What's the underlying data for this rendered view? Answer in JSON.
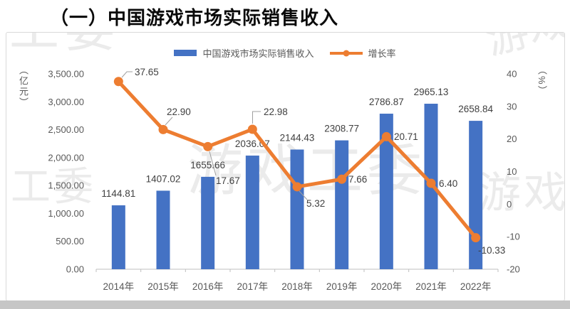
{
  "page": {
    "title": "（一）中国游戏市场实际销售收入"
  },
  "watermarks": [
    "工委",
    "游戏",
    "游戏工委",
    "工委",
    "游戏"
  ],
  "chart_data": {
    "type": "combo",
    "title": "（一）中国游戏市场实际销售收入",
    "categories": [
      "2014年",
      "2015年",
      "2016年",
      "2017年",
      "2018年",
      "2019年",
      "2020年",
      "2021年",
      "2022年"
    ],
    "series": [
      {
        "name": "中国游戏市场实际销售收入",
        "type": "bar",
        "axis": "left",
        "color": "#4472C4",
        "values": [
          1144.81,
          1407.02,
          1655.66,
          2036.07,
          2144.43,
          2308.77,
          2786.87,
          2965.13,
          2658.84
        ],
        "labels": [
          "1144.81",
          "1407.02",
          "1655.66",
          "2036.07",
          "2144.43",
          "2308.77",
          "2786.87",
          "2965.13",
          "2658.84"
        ]
      },
      {
        "name": "增长率",
        "type": "line",
        "axis": "right",
        "color": "#ED7D31",
        "values": [
          37.65,
          22.9,
          17.67,
          22.98,
          5.32,
          7.66,
          20.71,
          6.4,
          -10.33
        ],
        "labels": [
          "37.65",
          "22.90",
          "17.67",
          "22.98",
          "5.32",
          "7.66",
          "20.71",
          "6.40",
          "-10.33"
        ]
      }
    ],
    "left_axis": {
      "title": "（亿元）",
      "min": 0,
      "max": 3500,
      "step": 500,
      "ticks": [
        "3,500.00",
        "3,000.00",
        "2,500.00",
        "2,000.00",
        "1,500.00",
        "1,000.00",
        "500.00",
        "0.00"
      ]
    },
    "right_axis": {
      "title": "（%）",
      "min": -20,
      "max": 40,
      "step": 10,
      "ticks": [
        "40",
        "30",
        "20",
        "10",
        "0",
        "-10",
        "-20"
      ]
    },
    "legend_position": "top",
    "grid": false,
    "data_labels": true,
    "label_color": "#404040",
    "axis_text_color": "#595959",
    "axis_line_color": "#bfbfbf",
    "leader_line_color": "#a0a0a0"
  }
}
